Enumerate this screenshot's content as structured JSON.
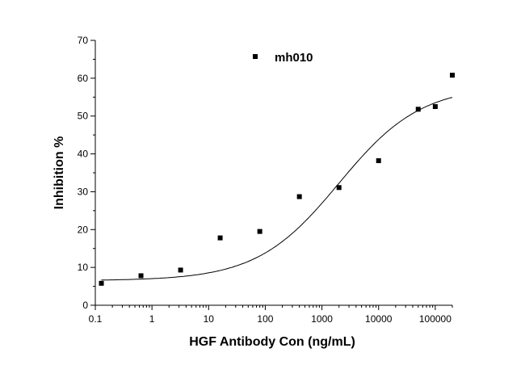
{
  "chart_data": {
    "type": "scatter",
    "xlabel": "HGF Antibody Con (ng/mL)",
    "ylabel": "Inhibition %",
    "xscale": "log",
    "xlim": [
      0.1,
      200000
    ],
    "ylim": [
      0,
      70
    ],
    "xticks": [
      {
        "value": 0.1,
        "label": "0.1"
      },
      {
        "value": 1,
        "label": "1"
      },
      {
        "value": 10,
        "label": "10"
      },
      {
        "value": 100,
        "label": "100"
      },
      {
        "value": 1000,
        "label": "1000"
      },
      {
        "value": 10000,
        "label": "10000"
      },
      {
        "value": 100000,
        "label": "100000"
      }
    ],
    "yticks": [
      {
        "value": 0,
        "label": "0"
      },
      {
        "value": 10,
        "label": "10"
      },
      {
        "value": 20,
        "label": "20"
      },
      {
        "value": 30,
        "label": "30"
      },
      {
        "value": 40,
        "label": "40"
      },
      {
        "value": 50,
        "label": "50"
      },
      {
        "value": 60,
        "label": "60"
      },
      {
        "value": 70,
        "label": "70"
      }
    ],
    "grid": false,
    "legend": "top-center",
    "series": [
      {
        "name": "mh010",
        "marker": "square",
        "color": "#000000",
        "x": [
          0.128,
          0.64,
          3.2,
          16,
          80,
          400,
          2000,
          10000,
          50000,
          100000,
          200000
        ],
        "y": [
          5.8,
          7.8,
          9.3,
          17.8,
          19.5,
          28.7,
          31.1,
          38.2,
          51.8,
          52.5,
          60.8
        ]
      }
    ],
    "fit_curve": {
      "type": "logistic",
      "bottom": 6.5,
      "top": 58,
      "ec50": 2000,
      "hill": 0.6,
      "x_range": [
        0.128,
        200000
      ]
    }
  }
}
